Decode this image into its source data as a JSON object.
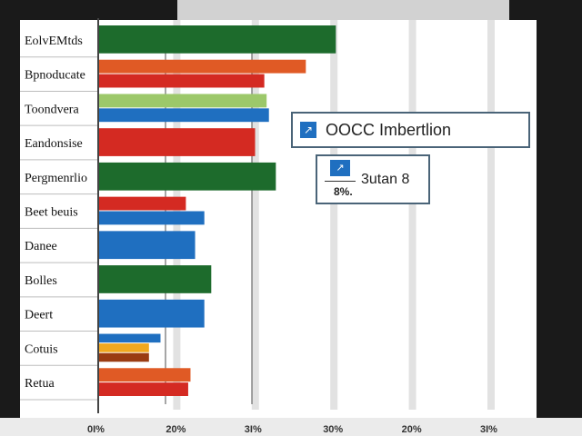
{
  "chart_data": {
    "type": "bar",
    "orientation": "horizontal",
    "categories": [
      "EolvEMtds",
      "Bpnoducate",
      "Toondvera",
      "Eandonsise",
      "Pergmenrlio",
      "Beet beuis",
      "Danee",
      "Bolles",
      "Deert",
      "Cotuis",
      "Retua"
    ],
    "series": [
      {
        "color": "#1d6b2c",
        "values": [
          51.5,
          null,
          null,
          null,
          38.5,
          null,
          null,
          24.5,
          null,
          null,
          null
        ]
      },
      {
        "color": "#e05a25",
        "values": [
          null,
          45.0,
          null,
          null,
          null,
          null,
          null,
          null,
          null,
          null,
          20.0
        ]
      },
      {
        "color": "#d42a22",
        "values": [
          null,
          36.0,
          null,
          34.0,
          null,
          19.0,
          null,
          null,
          null,
          null,
          19.5
        ]
      },
      {
        "color": "#9cc86a",
        "values": [
          null,
          null,
          36.5,
          null,
          null,
          null,
          null,
          null,
          null,
          null,
          null
        ]
      },
      {
        "color": "#1f6fc0",
        "values": [
          null,
          null,
          37.0,
          null,
          null,
          23.0,
          21.0,
          null,
          23.0,
          13.5,
          null
        ]
      },
      {
        "color": "#f0a81e",
        "values": [
          null,
          null,
          null,
          null,
          null,
          null,
          null,
          null,
          null,
          11.0,
          null
        ]
      },
      {
        "color": "#9a3c12",
        "values": [
          null,
          null,
          null,
          null,
          null,
          null,
          null,
          null,
          null,
          11.0,
          null
        ]
      }
    ],
    "xticks": [
      "0I%",
      "20%",
      "3I%",
      "30%",
      "20%",
      "3I%"
    ],
    "xlim": [
      0,
      95
    ],
    "grid": true,
    "legend": [
      {
        "text": "OOCC Imbertlion",
        "icon": "chart-icon"
      },
      {
        "text": "3utan 8",
        "sub": "8%.",
        "icon": "chart-icon"
      }
    ]
  }
}
